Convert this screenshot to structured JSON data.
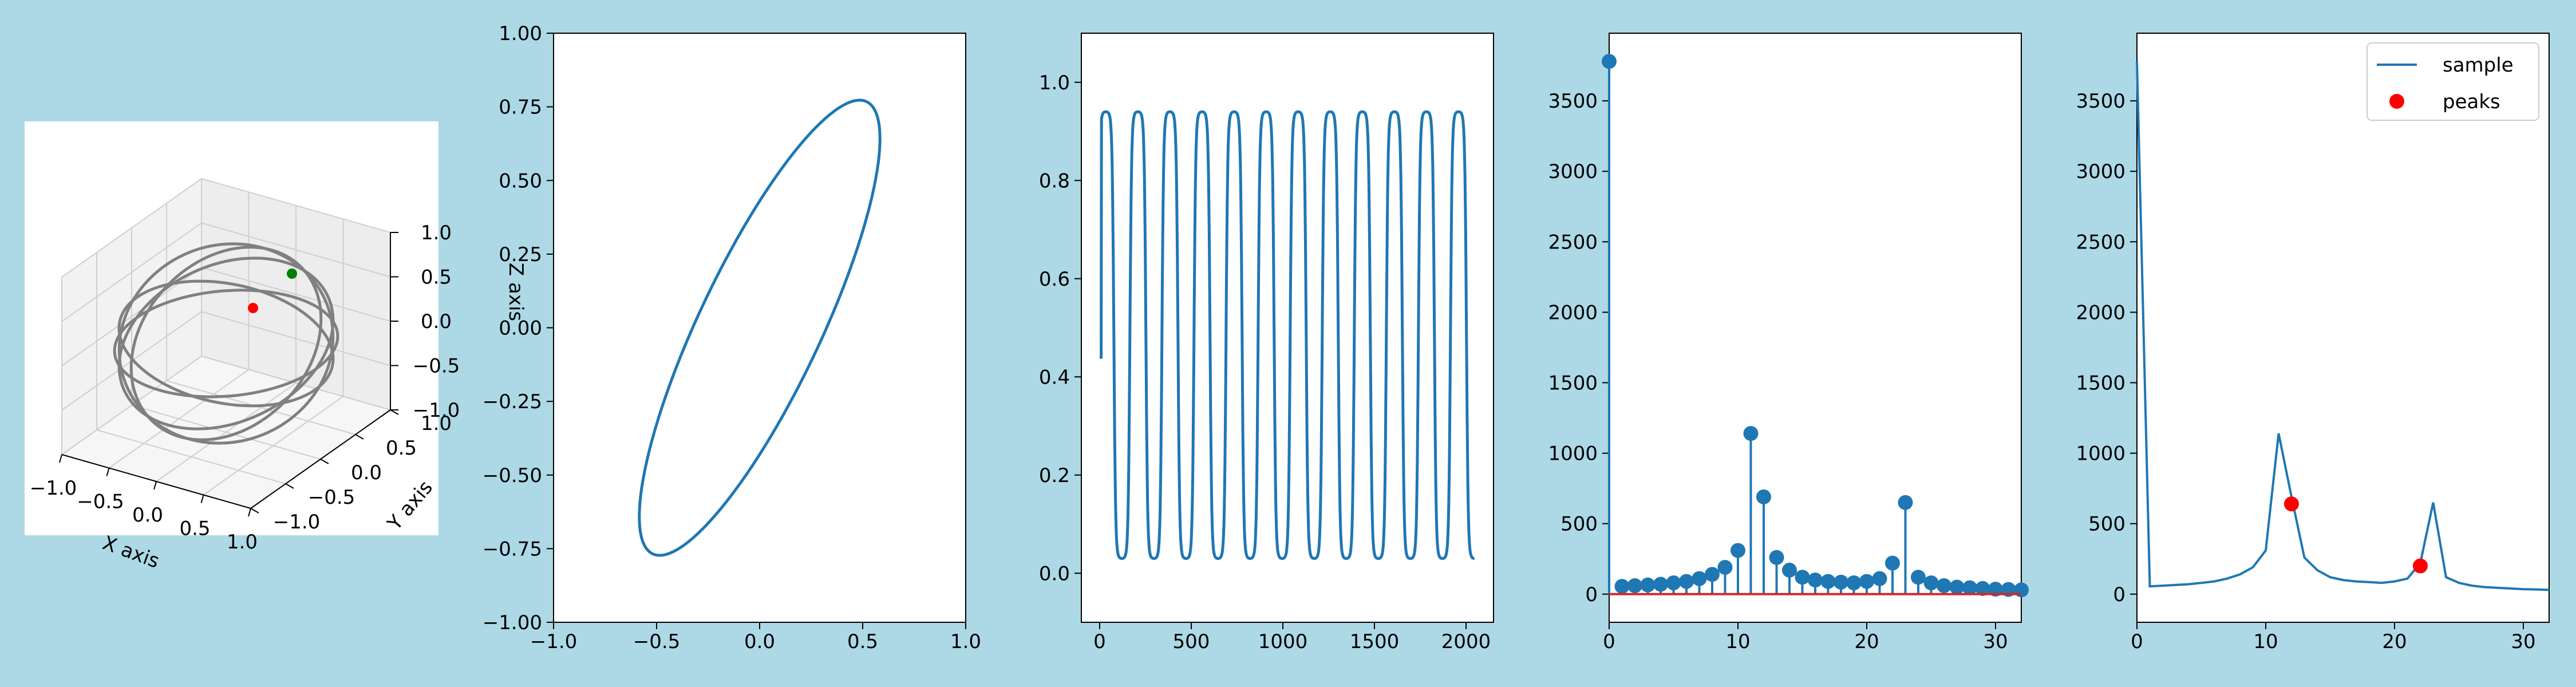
{
  "figure": {
    "background": "#add8e6"
  },
  "chart_data": [
    {
      "type": "line3d",
      "title": "",
      "xlabel": "X axis",
      "ylabel": "Y axis",
      "zlabel": "Z axis",
      "xlim": [
        -1.0,
        1.0
      ],
      "ylim": [
        -1.0,
        1.0
      ],
      "zlim": [
        -1.0,
        1.0
      ],
      "xticks": [
        "−1.0",
        "−0.5",
        "0.0",
        "0.5",
        "1.0"
      ],
      "yticks": [
        "−1.0",
        "−0.5",
        "0.0",
        "0.5",
        "1.0"
      ],
      "zticks": [
        "−1.0",
        "−0.5",
        "0.0",
        "0.5",
        "1.0"
      ],
      "grid": true,
      "line_color": "#808080",
      "points": [
        {
          "name": "",
          "color": "#ff0000"
        },
        {
          "name": "",
          "color": "#008000"
        }
      ]
    },
    {
      "type": "line",
      "title": "",
      "xlim": [
        -1.0,
        1.0
      ],
      "ylim": [
        -1.0,
        1.0
      ],
      "xticks": [
        "−1.0",
        "−0.5",
        "0.0",
        "0.5",
        "1.0"
      ],
      "yticks": [
        "−1.00",
        "−0.75",
        "−0.50",
        "−0.25",
        "0.00",
        "0.25",
        "0.50",
        "0.75",
        "1.00"
      ],
      "color": "#1f77b4",
      "curve": "ellipse",
      "x_extent": [
        -0.66,
        0.66
      ],
      "y_extent": [
        -0.75,
        0.75
      ]
    },
    {
      "type": "line",
      "title": "",
      "xlim": [
        -100,
        2150
      ],
      "ylim": [
        -0.1,
        1.1
      ],
      "xticks": [
        "0",
        "500",
        "1000",
        "1500",
        "2000"
      ],
      "yticks": [
        "0.0",
        "0.2",
        "0.4",
        "0.6",
        "0.8",
        "1.0"
      ],
      "color": "#1f77b4",
      "n_points": 2048,
      "y_start": 0.44,
      "y_min": 0.03,
      "y_max": 0.94,
      "cycles": 11.5
    },
    {
      "type": "stem",
      "title": "",
      "xlim": [
        0,
        32
      ],
      "ylim": [
        -200,
        3980
      ],
      "xticks": [
        "0",
        "10",
        "20",
        "30"
      ],
      "yticks": [
        "0",
        "500",
        "1000",
        "1500",
        "2000",
        "2500",
        "3000",
        "3500"
      ],
      "color": "#1f77b4",
      "baseline_color": "#d62728",
      "x": [
        0,
        1,
        2,
        3,
        4,
        5,
        6,
        7,
        8,
        9,
        10,
        11,
        12,
        13,
        14,
        15,
        16,
        17,
        18,
        19,
        20,
        21,
        22,
        23,
        24,
        25,
        26,
        27,
        28,
        29,
        30,
        31,
        32
      ],
      "values": [
        3780,
        55,
        60,
        65,
        70,
        80,
        90,
        110,
        140,
        190,
        310,
        1140,
        690,
        260,
        170,
        120,
        100,
        90,
        85,
        80,
        90,
        110,
        220,
        650,
        120,
        80,
        60,
        50,
        45,
        40,
        35,
        33,
        30
      ]
    },
    {
      "type": "line",
      "title": "",
      "xlim": [
        0,
        32
      ],
      "ylim": [
        -200,
        3980
      ],
      "xticks": [
        "0",
        "10",
        "20",
        "30"
      ],
      "yticks": [
        "0",
        "500",
        "1000",
        "1500",
        "2000",
        "2500",
        "3000",
        "3500"
      ],
      "legend": {
        "position": "top-right",
        "entries": [
          "sample",
          "peaks"
        ]
      },
      "series": [
        {
          "name": "sample",
          "type": "line",
          "color": "#1f77b4",
          "x": [
            0,
            1,
            2,
            3,
            4,
            5,
            6,
            7,
            8,
            9,
            10,
            11,
            12,
            13,
            14,
            15,
            16,
            17,
            18,
            19,
            20,
            21,
            22,
            23,
            24,
            25,
            26,
            27,
            28,
            29,
            30,
            31,
            32
          ],
          "values": [
            3780,
            55,
            60,
            65,
            70,
            80,
            90,
            110,
            140,
            190,
            310,
            1140,
            690,
            260,
            170,
            120,
            100,
            90,
            85,
            80,
            90,
            110,
            220,
            650,
            120,
            80,
            60,
            50,
            45,
            40,
            35,
            33,
            30
          ]
        },
        {
          "name": "peaks",
          "type": "scatter",
          "color": "#ff0000",
          "x": [
            12,
            22
          ],
          "values": [
            640,
            200
          ]
        }
      ]
    }
  ]
}
